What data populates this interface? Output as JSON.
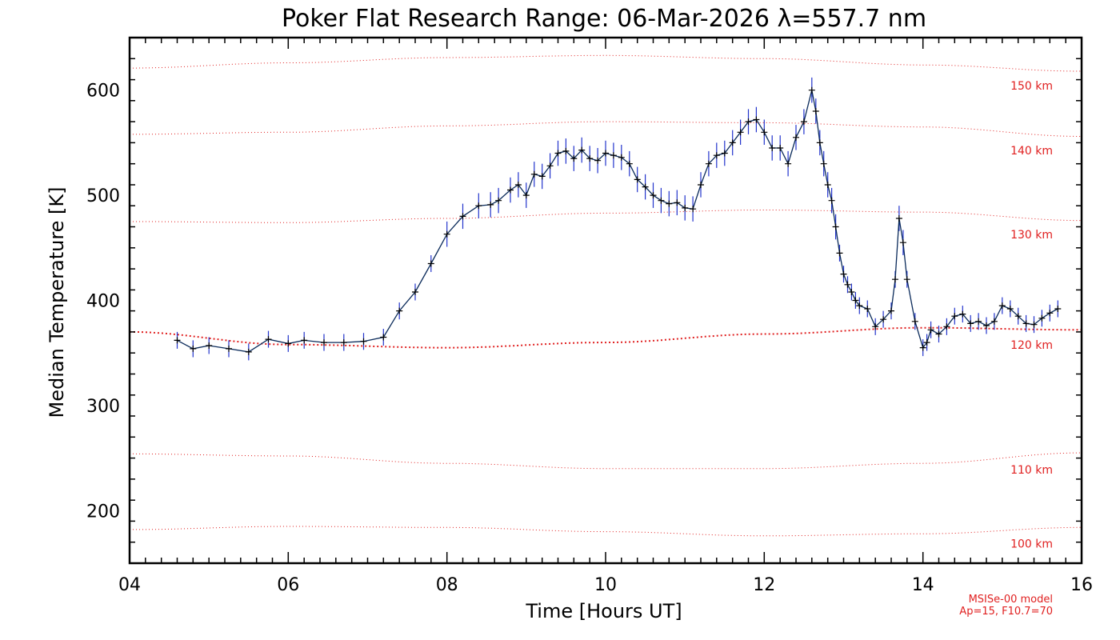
{
  "chart_data": {
    "type": "line",
    "title": "Poker Flat Research Range: 06-Mar-2026 λ=557.7 nm",
    "xlabel": "Time [Hours UT]",
    "ylabel": "Median Temperature [K]",
    "xlim": [
      4,
      16
    ],
    "ylim": [
      150,
      650
    ],
    "x_ticks": [
      4,
      6,
      8,
      10,
      12,
      14,
      16
    ],
    "x_tick_labels": [
      "04",
      "06",
      "08",
      "10",
      "12",
      "14",
      "16"
    ],
    "y_ticks": [
      200,
      300,
      400,
      500,
      600
    ],
    "y_tick_labels": [
      "200",
      "300",
      "400",
      "500",
      "600"
    ],
    "colors": {
      "data_line": "#0a2a5a",
      "error_bars": "#2233cc",
      "markers": "#000000",
      "model_curves": "#e02020"
    },
    "series": [
      {
        "name": "Median Temperature",
        "x": [
          4.6,
          4.8,
          5.0,
          5.25,
          5.5,
          5.75,
          6.0,
          6.2,
          6.45,
          6.7,
          6.95,
          7.2,
          7.4,
          7.6,
          7.8,
          8.0,
          8.2,
          8.4,
          8.55,
          8.65,
          8.8,
          8.9,
          9.0,
          9.1,
          9.2,
          9.3,
          9.4,
          9.5,
          9.6,
          9.7,
          9.8,
          9.9,
          10.0,
          10.1,
          10.2,
          10.3,
          10.4,
          10.5,
          10.6,
          10.7,
          10.8,
          10.9,
          11.0,
          11.1,
          11.2,
          11.3,
          11.4,
          11.5,
          11.6,
          11.7,
          11.8,
          11.9,
          12.0,
          12.1,
          12.2,
          12.3,
          12.4,
          12.5,
          12.6,
          12.65,
          12.7,
          12.75,
          12.8,
          12.85,
          12.9,
          12.95,
          13.0,
          13.05,
          13.1,
          13.15,
          13.2,
          13.3,
          13.4,
          13.5,
          13.6,
          13.65,
          13.7,
          13.75,
          13.8,
          13.9,
          14.0,
          14.05,
          14.1,
          14.2,
          14.3,
          14.4,
          14.5,
          14.6,
          14.7,
          14.8,
          14.9,
          15.0,
          15.1,
          15.2,
          15.3,
          15.4,
          15.5,
          15.6,
          15.7
        ],
        "y": [
          362,
          354,
          357,
          354,
          351,
          363,
          359,
          362,
          360,
          360,
          361,
          365,
          390,
          408,
          435,
          463,
          480,
          490,
          491,
          495,
          505,
          510,
          500,
          520,
          518,
          528,
          540,
          542,
          535,
          543,
          535,
          533,
          540,
          538,
          536,
          530,
          515,
          508,
          500,
          495,
          492,
          493,
          488,
          487,
          510,
          530,
          538,
          540,
          550,
          560,
          570,
          572,
          560,
          545,
          545,
          530,
          555,
          570,
          600,
          580,
          550,
          530,
          510,
          495,
          470,
          445,
          425,
          415,
          408,
          400,
          395,
          392,
          375,
          382,
          390,
          420,
          478,
          455,
          420,
          380,
          355,
          360,
          372,
          368,
          375,
          385,
          387,
          378,
          380,
          376,
          380,
          395,
          392,
          385,
          378,
          377,
          383,
          388,
          392
        ]
      }
    ],
    "model_curves": [
      {
        "label": "100 km",
        "x": [
          4,
          6,
          8,
          10,
          12,
          14,
          16
        ],
        "y": [
          182,
          185,
          184,
          180,
          176,
          178,
          184
        ]
      },
      {
        "label": "110 km",
        "x": [
          4,
          6,
          8,
          10,
          12,
          14,
          16
        ],
        "y": [
          254,
          252,
          245,
          240,
          240,
          245,
          255
        ]
      },
      {
        "label": "120 km",
        "x": [
          4,
          6,
          8,
          10,
          12,
          14,
          16
        ],
        "y": [
          370,
          358,
          355,
          360,
          368,
          374,
          372
        ]
      },
      {
        "label": "130 km",
        "x": [
          4,
          6,
          8,
          10,
          12,
          14,
          16
        ],
        "y": [
          475,
          474,
          478,
          483,
          486,
          484,
          476
        ]
      },
      {
        "label": "140 km",
        "x": [
          4,
          6,
          8,
          10,
          12,
          14,
          16
        ],
        "y": [
          558,
          560,
          566,
          570,
          569,
          565,
          556
        ]
      },
      {
        "label": "150 km",
        "x": [
          4,
          6,
          8,
          10,
          12,
          14,
          16
        ],
        "y": [
          621,
          626,
          631,
          633,
          630,
          624,
          618
        ]
      }
    ],
    "model_note": [
      "MSISe-00 model",
      "Ap=15, F10.7=70"
    ]
  }
}
